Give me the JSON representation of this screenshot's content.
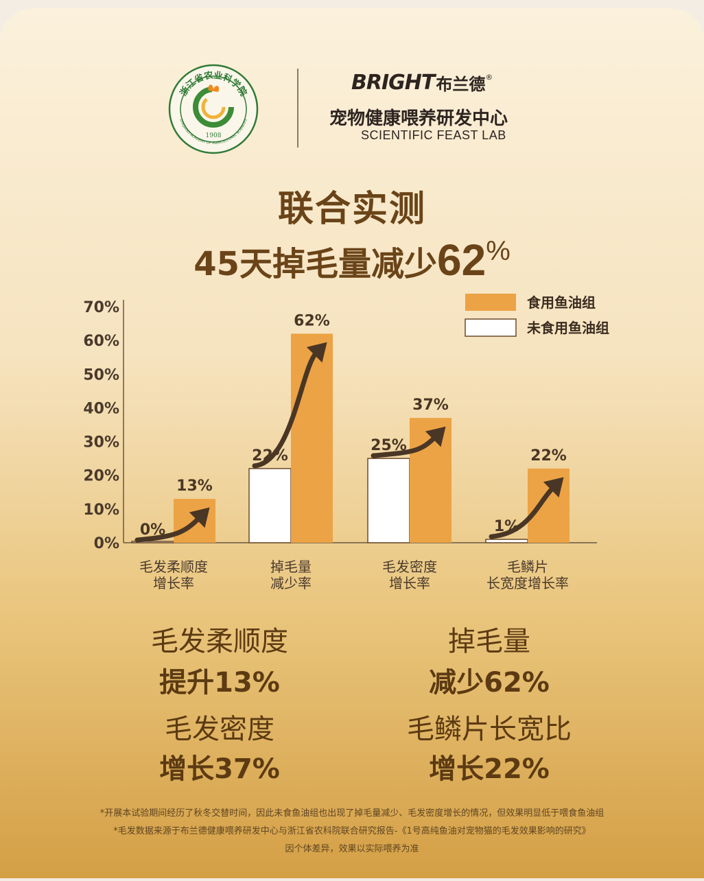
{
  "header": {
    "seal_text_top": "浙江省农业科学院",
    "seal_year": "1908",
    "seal_text_en": "ZHEJIANG ACADEMY OF AGRICULTURAL SCIENCES",
    "brand_en": "BRIGHT",
    "brand_cn": "布兰德",
    "brand_reg": "®",
    "center_cn": "宠物健康喂养研发中心",
    "center_en": "SCIENTIFIC  FEAST LAB"
  },
  "headline": {
    "line1": "联合实测",
    "line2_prefix": "45天掉毛量减少",
    "line2_number": "62",
    "line2_pct": "%"
  },
  "chart_data": {
    "type": "bar",
    "categories": [
      [
        "毛发柔顺度",
        "增长率"
      ],
      [
        "掉毛量",
        "减少率"
      ],
      [
        "毛发密度",
        "增长率"
      ],
      [
        "毛鳞片",
        "长宽度增长率"
      ]
    ],
    "series": [
      {
        "name": "未食用鱼油组",
        "values": [
          0,
          22,
          25,
          1
        ],
        "labels": [
          "0%",
          "22%",
          "25%",
          "1%"
        ],
        "color": "#ffffff",
        "stroke": "#6b4a2a"
      },
      {
        "name": "食用鱼油组",
        "values": [
          13,
          62,
          37,
          22
        ],
        "labels": [
          "13%",
          "62%",
          "37%",
          "22%"
        ],
        "color": "#eca345"
      }
    ],
    "ylim": [
      0,
      70
    ],
    "yticks": [
      "0%",
      "10%",
      "20%",
      "30%",
      "40%",
      "50%",
      "60%",
      "70%"
    ],
    "legend_position": "top-right",
    "grid": false,
    "arrow_color": "#4a3624"
  },
  "stats": [
    {
      "title": "毛发柔顺度",
      "value": "提升13%"
    },
    {
      "title": "掉毛量",
      "value": "减少62%"
    },
    {
      "title": "毛发密度",
      "value": "增长37%"
    },
    {
      "title": "毛鳞片长宽比",
      "value": "增长22%"
    }
  ],
  "footnotes": [
    "*开展本试验期间经历了秋冬交替时间，因此未食鱼油组也出现了掉毛量减少、毛发密度增长的情况，但效果明显低于喂食鱼油组",
    "*毛发数据来源于布兰德健康喂养研发中心与浙江省农科院联合研究报告-《1号高纯鱼油对宠物猫的毛发效果影响的研究》",
    "因个体差异，效果以实际喂养为准"
  ]
}
